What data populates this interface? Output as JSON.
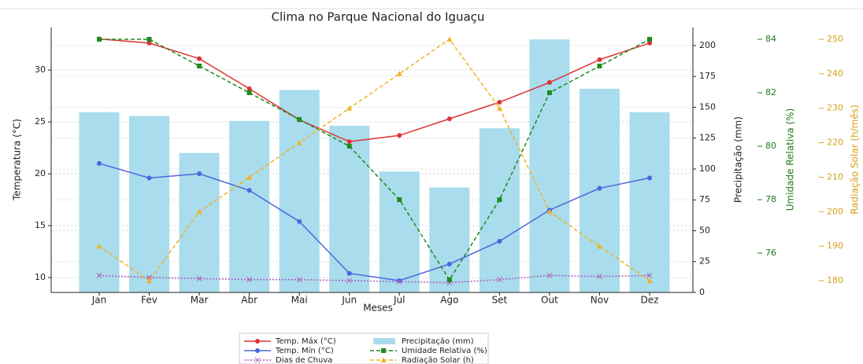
{
  "chart_data": {
    "type": "combo",
    "title": "Clima no Parque Nacional do Iguaçu",
    "xlabel": "Meses",
    "ylabel": "Temperatura (°C)",
    "y2label": "Precipitação (mm)",
    "y3label": "Umidade Relativa (%)",
    "y4label": "Radiação Solar (h/mês)",
    "categories": [
      "Jan",
      "Fev",
      "Mar",
      "Abr",
      "Mai",
      "Jun",
      "Jul",
      "Ago",
      "Set",
      "Out",
      "Nov",
      "Dez"
    ],
    "ylim": [
      8.56,
      34.1
    ],
    "yticks": [
      10,
      15,
      20,
      25,
      30
    ],
    "y2lim": [
      0,
      214.6
    ],
    "y2ticks": [
      0,
      25,
      50,
      75,
      100,
      125,
      150,
      175,
      200
    ],
    "y3lim": [
      74.53,
      84.44
    ],
    "y3ticks": [
      76,
      78,
      80,
      82,
      84
    ],
    "y3color": "#1e7a1e",
    "y4lim": [
      176.6,
      253.4
    ],
    "y4ticks": [
      180,
      190,
      200,
      210,
      220,
      230,
      240,
      250
    ],
    "y4color": "#d4a017",
    "grid": true,
    "legend": "bottom",
    "series": [
      {
        "name": "Precipitação (mm)",
        "type": "bar",
        "axis": "y2",
        "color": "#a9dcec",
        "values": [
          146,
          143,
          113,
          139,
          164,
          135,
          98,
          85,
          133,
          205,
          165,
          146
        ]
      },
      {
        "name": "Temp. Máx (°C)",
        "type": "line",
        "axis": "y",
        "color": "#dd3333",
        "linestyle": "solid",
        "marker": "circle",
        "values": [
          33.0,
          32.6,
          31.1,
          28.2,
          25.2,
          23.1,
          23.7,
          25.3,
          26.9,
          28.8,
          31.0,
          32.6
        ]
      },
      {
        "name": "Temp. Mín (°C)",
        "type": "line",
        "axis": "y",
        "color": "#4a66dd",
        "linestyle": "solid",
        "marker": "circle",
        "values": [
          21.0,
          19.6,
          20.0,
          18.4,
          15.4,
          10.4,
          9.7,
          11.3,
          13.5,
          16.5,
          18.6,
          19.6
        ]
      },
      {
        "name": "Dias de Chuva",
        "type": "line",
        "axis": "y",
        "color": "#b05cc0",
        "linestyle": "dotted",
        "marker": "x",
        "values": [
          10.2,
          10.0,
          9.9,
          9.8,
          9.8,
          9.7,
          9.6,
          9.5,
          9.8,
          10.2,
          10.1,
          10.2
        ]
      },
      {
        "name": "Umidade Relativa (%)",
        "type": "line",
        "axis": "y3",
        "color": "#1e8a1e",
        "linestyle": "dashed",
        "marker": "square",
        "values": [
          84,
          84,
          83,
          82,
          81,
          80,
          78,
          75,
          78,
          82,
          83,
          84
        ]
      },
      {
        "name": "Radiação Solar (h)",
        "type": "line",
        "axis": "y4",
        "color": "#f0b323",
        "linestyle": "dashed",
        "marker": "triangle",
        "values": [
          190,
          180,
          200,
          210,
          220,
          230,
          240,
          250,
          230,
          200,
          190,
          180
        ]
      }
    ]
  }
}
